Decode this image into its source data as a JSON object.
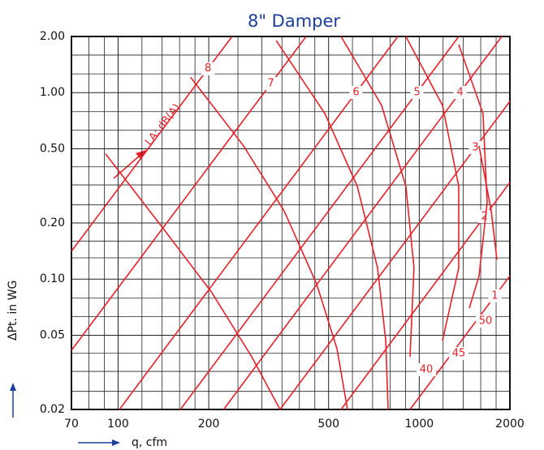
{
  "chart_data": {
    "type": "line",
    "title": "8\" Damper",
    "x_label": "q, cfm",
    "y_label": "ΔPt. in WG",
    "annotation": "LA: dB(A)",
    "log_x": true,
    "log_y": true,
    "grid": true,
    "xlim": [
      70,
      2000
    ],
    "ylim": [
      0.02,
      2.0
    ],
    "xticks": [
      70,
      100,
      200,
      500,
      1000,
      2000
    ],
    "yticks": [
      {
        "value": 2.0,
        "label": "2.00"
      },
      {
        "value": 1.0,
        "label": "1.00"
      },
      {
        "value": 0.5,
        "label": "0.50"
      },
      {
        "value": 0.2,
        "label": "0.20"
      },
      {
        "value": 0.1,
        "label": "0.10"
      },
      {
        "value": 0.05,
        "label": "0.05"
      },
      {
        "value": 0.02,
        "label": "0.02"
      }
    ],
    "x_minor_ticks": [
      80,
      90,
      120,
      140,
      160,
      180,
      250,
      300,
      350,
      400,
      450,
      600,
      700,
      800,
      900,
      1200,
      1400,
      1600,
      1800
    ],
    "y_minor_ticks": [
      1.59,
      1.26,
      0.79,
      0.63,
      0.4,
      0.32,
      0.25,
      0.16,
      0.13,
      0.079,
      0.063,
      0.04,
      0.032,
      0.025
    ],
    "series": [
      {
        "name": "1",
        "color": "#e8202a",
        "x": [
          932,
          2000
        ],
        "values": [
          0.02,
          0.104
        ]
      },
      {
        "name": "2",
        "color": "#e8202a",
        "x": [
          550,
          2000
        ],
        "values": [
          0.02,
          0.33
        ]
      },
      {
        "name": "3",
        "color": "#e8202a",
        "x": [
          345,
          2000
        ],
        "values": [
          0.02,
          0.898
        ]
      },
      {
        "name": "4",
        "color": "#e8202a",
        "x": [
          224,
          1880
        ],
        "values": [
          0.02,
          2.0
        ]
      },
      {
        "name": "5",
        "color": "#e8202a",
        "x": [
          161,
          1353
        ],
        "values": [
          0.02,
          2.0
        ]
      },
      {
        "name": "6",
        "color": "#e8202a",
        "x": [
          101,
          849
        ],
        "values": [
          0.02,
          2.0
        ]
      },
      {
        "name": "7",
        "color": "#e8202a",
        "x": [
          70,
          421
        ],
        "values": [
          0.0415,
          2.0
        ]
      },
      {
        "name": "8",
        "color": "#e8202a",
        "x": [
          70,
          239
        ],
        "values": [
          0.141,
          2.0
        ]
      },
      {
        "color": "#e8202a",
        "x": [
          90.9,
          140,
          204,
          278,
          345
        ],
        "values": [
          0.469,
          0.19,
          0.0854,
          0.0383,
          0.02
        ]
      },
      {
        "color": "#e8202a",
        "x": [
          174,
          261,
          356,
          456,
          533,
          578
        ],
        "values": [
          1.21,
          0.518,
          0.232,
          0.0944,
          0.0424,
          0.02
        ]
      },
      {
        "color": "#e8202a",
        "x": [
          335,
          486,
          623,
          727,
          774,
          788
        ],
        "values": [
          1.9,
          0.773,
          0.314,
          0.115,
          0.0468,
          0.02
        ]
      },
      {
        "name": "40",
        "color": "#e8202a",
        "x": [
          550,
          750,
          903,
          961,
          932
        ],
        "values": [
          2.0,
          0.854,
          0.314,
          0.115,
          0.0383
        ]
      },
      {
        "name": "45",
        "color": "#e8202a",
        "x": [
          903,
          1195,
          1353,
          1353,
          1195
        ],
        "values": [
          2.0,
          0.854,
          0.314,
          0.115,
          0.0468
        ]
      },
      {
        "name": "50",
        "color": "#e8202a",
        "x": [
          1353,
          1629,
          1681,
          1580,
          1466
        ],
        "values": [
          1.81,
          0.773,
          0.257,
          0.104,
          0.0699
        ]
      },
      {
        "color": "#e8202a",
        "x": [
          1580,
          1734,
          1811
        ],
        "values": [
          0.518,
          0.232,
          0.127
        ]
      }
    ]
  }
}
